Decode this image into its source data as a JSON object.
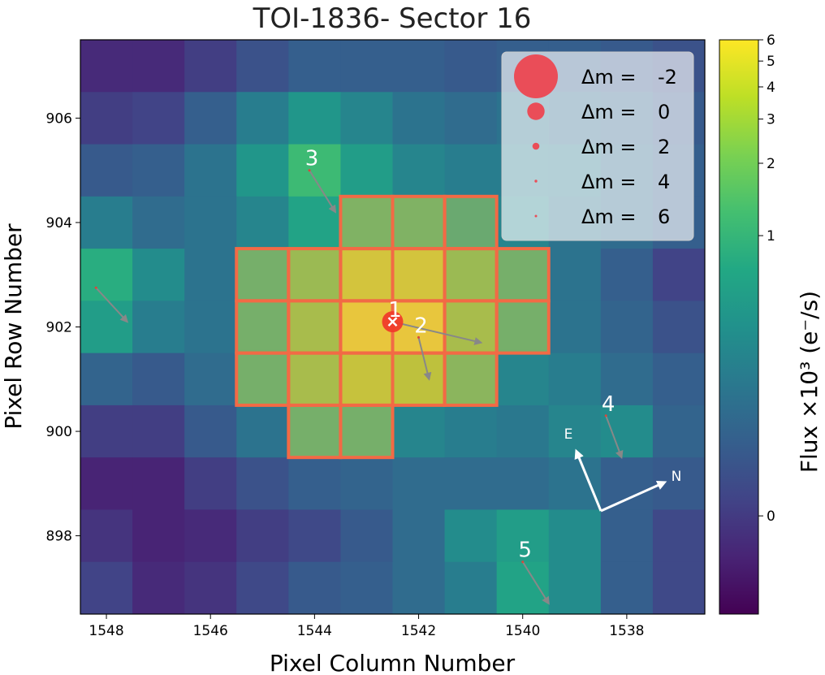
{
  "chart_data": {
    "type": "heatmap",
    "title": "TOI-1836- Sector 16",
    "xlabel": "Pixel Column Number",
    "ylabel": "Pixel Row Number",
    "colorbar_label": "Flux ×10³ (e⁻/s)",
    "colormap": "viridis",
    "x_axis_inverted": true,
    "x_ticks": [
      1548,
      1546,
      1544,
      1542,
      1540,
      1538
    ],
    "y_ticks": [
      906,
      904,
      902,
      900,
      898
    ],
    "columns": [
      1548,
      1547,
      1546,
      1545,
      1544,
      1543,
      1542,
      1541,
      1540,
      1539,
      1538,
      1537
    ],
    "rows": [
      907,
      906,
      905,
      904,
      903,
      902,
      901,
      900,
      899,
      898,
      897
    ],
    "grid": false,
    "legend_position": "top-right",
    "values": [
      [
        0.12,
        0.12,
        0.18,
        0.25,
        0.3,
        0.3,
        0.3,
        0.28,
        0.3,
        0.3,
        0.28,
        0.25
      ],
      [
        0.18,
        0.2,
        0.3,
        0.42,
        0.52,
        0.45,
        0.38,
        0.35,
        0.38,
        0.35,
        0.32,
        0.28
      ],
      [
        0.28,
        0.3,
        0.38,
        0.52,
        0.68,
        0.55,
        0.45,
        0.42,
        0.42,
        0.4,
        0.35,
        0.3
      ],
      [
        0.42,
        0.35,
        0.38,
        0.45,
        0.58,
        0.75,
        0.75,
        0.68,
        0.45,
        0.38,
        0.35,
        0.3
      ],
      [
        0.62,
        0.48,
        0.38,
        0.72,
        0.82,
        0.95,
        0.95,
        0.82,
        0.72,
        0.38,
        0.3,
        0.2
      ],
      [
        0.55,
        0.42,
        0.38,
        0.72,
        0.85,
        1.0,
        1.0,
        0.85,
        0.72,
        0.38,
        0.32,
        0.25
      ],
      [
        0.32,
        0.28,
        0.35,
        0.72,
        0.85,
        0.92,
        0.9,
        0.78,
        0.45,
        0.42,
        0.35,
        0.3
      ],
      [
        0.18,
        0.18,
        0.28,
        0.38,
        0.72,
        0.72,
        0.45,
        0.42,
        0.4,
        0.45,
        0.48,
        0.32
      ],
      [
        0.1,
        0.1,
        0.18,
        0.25,
        0.3,
        0.32,
        0.35,
        0.35,
        0.35,
        0.38,
        0.3,
        0.28
      ],
      [
        0.15,
        0.1,
        0.12,
        0.18,
        0.22,
        0.28,
        0.35,
        0.48,
        0.55,
        0.48,
        0.3,
        0.22
      ],
      [
        0.2,
        0.12,
        0.15,
        0.22,
        0.28,
        0.3,
        0.35,
        0.42,
        0.58,
        0.48,
        0.3,
        0.22
      ]
    ],
    "colorbar_ticks": [
      {
        "label": "6",
        "t": 1.0
      },
      {
        "label": "5",
        "t": 0.963
      },
      {
        "label": "4",
        "t": 0.918
      },
      {
        "label": "3",
        "t": 0.862
      },
      {
        "label": "2",
        "t": 0.785
      },
      {
        "label": "1",
        "t": 0.659
      },
      {
        "label": "0",
        "t": 0.171
      }
    ],
    "aperture": [
      [
        904,
        1543
      ],
      [
        904,
        1542
      ],
      [
        904,
        1541
      ],
      [
        903,
        1545
      ],
      [
        903,
        1544
      ],
      [
        903,
        1543
      ],
      [
        903,
        1542
      ],
      [
        903,
        1541
      ],
      [
        903,
        1540
      ],
      [
        902,
        1545
      ],
      [
        902,
        1544
      ],
      [
        902,
        1543
      ],
      [
        902,
        1542
      ],
      [
        902,
        1541
      ],
      [
        902,
        1540
      ],
      [
        901,
        1545
      ],
      [
        901,
        1544
      ],
      [
        901,
        1543
      ],
      [
        901,
        1542
      ],
      [
        901,
        1541
      ],
      [
        900,
        1544
      ],
      [
        900,
        1543
      ]
    ],
    "stars": [
      {
        "label": "1",
        "col": 1542.5,
        "row": 902.1,
        "dm": 0,
        "target": true
      },
      {
        "label": "2",
        "col": 1542.0,
        "row": 901.8,
        "dm": 5,
        "target": false
      },
      {
        "label": "3",
        "col": 1544.1,
        "row": 905.0,
        "dm": 4.5,
        "target": false
      },
      {
        "label": "4",
        "col": 1538.4,
        "row": 900.3,
        "dm": 5,
        "target": false
      },
      {
        "label": "5",
        "col": 1540.0,
        "row": 897.5,
        "dm": 4.5,
        "target": false
      },
      {
        "label": "",
        "col": 1548.2,
        "row": 902.75,
        "dm": 4.5,
        "target": false
      }
    ],
    "proper_motion": [
      {
        "from": [
          1542.5,
          902.1
        ],
        "to": [
          1540.8,
          901.7
        ]
      },
      {
        "from": [
          1542.0,
          901.8
        ],
        "to": [
          1541.8,
          901.0
        ]
      },
      {
        "from": [
          1544.1,
          905.0
        ],
        "to": [
          1543.6,
          904.2
        ]
      },
      {
        "from": [
          1538.4,
          900.3
        ],
        "to": [
          1538.1,
          899.5
        ]
      },
      {
        "from": [
          1540.0,
          897.5
        ],
        "to": [
          1539.5,
          896.7
        ]
      },
      {
        "from": [
          1548.2,
          902.75
        ],
        "to": [
          1547.6,
          902.1
        ]
      }
    ],
    "legend": [
      {
        "symbol": "Δm =",
        "value": "-2",
        "dm": -2
      },
      {
        "symbol": "Δm =",
        "value": "0",
        "dm": 0
      },
      {
        "symbol": "Δm =",
        "value": "2",
        "dm": 2
      },
      {
        "symbol": "Δm =",
        "value": "4",
        "dm": 4
      },
      {
        "symbol": "Δm =",
        "value": "6",
        "dm": 6
      }
    ],
    "compass": {
      "east": "E",
      "north": "N"
    }
  }
}
